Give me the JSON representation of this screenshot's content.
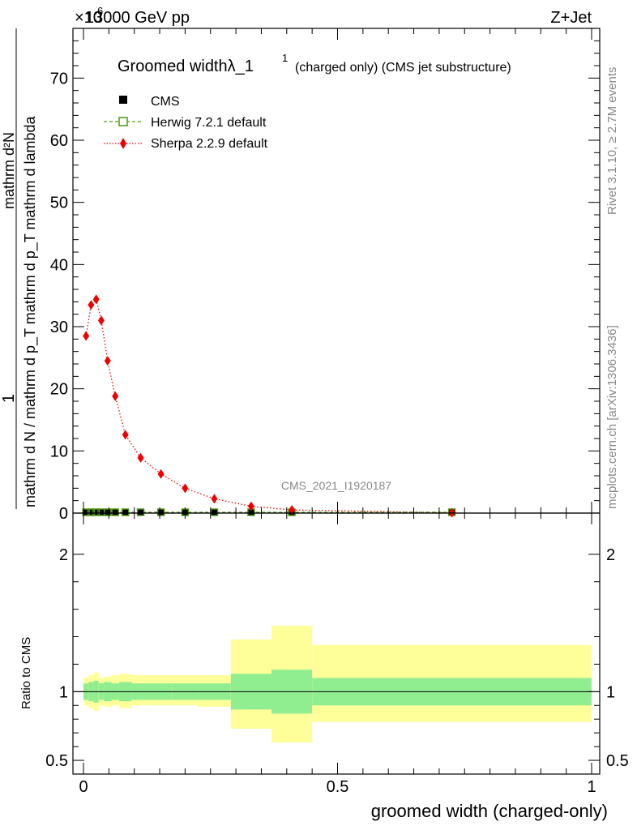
{
  "header": {
    "energy_label": "13000 GeV pp",
    "process_label": "Z+Jet",
    "exponent_label": "×10⁶",
    "exponent_label_cut": "6"
  },
  "side_labels": {
    "rivet": "Rivet 3.1.10, ≥ 2.7M events",
    "mcplots": "mcplots.cern.ch [arXiv:1306.3436]"
  },
  "watermark": "CMS_2021_I1920187",
  "chart_data": [
    {
      "type": "line",
      "title": "Groomed widthλ_1",
      "title_sup": "1",
      "subtitle": "(charged only) (CMS jet substructure)",
      "xlabel": "groomed width (charged-only)",
      "ylabel_numerator": "mathrm d²N",
      "ylabel_denominator": "mathrm d N / mathrm d p_T mathrm d p_T mathrm d lambda",
      "ylabel_one": "1",
      "ylabel_fraction_left": "1",
      "ylabel_fraction_denominator": "mathrm d N / mathrm d p",
      "ylabel_fraction_denominator_sub": "T",
      "ylabel_fraction_numerator": "mathrm d",
      "ylabel_fraction_numerator_sup": "2",
      "ylabel_fraction_numerator_tail": "N",
      "ylabel_fraction_denominator_tail": "mathrm d p",
      "ylabel_fraction_denominator_tail_sub": "T",
      "ylabel_fraction_denominator_end": "mathrm d lambda",
      "xlim": [
        0,
        1
      ],
      "ylim": [
        0,
        78
      ],
      "y_ticks": [
        0,
        10,
        20,
        30,
        40,
        50,
        60,
        70
      ],
      "x_ticks": [
        0,
        0.5,
        1
      ],
      "x_tick_labels": [
        "0",
        "0.5",
        "1"
      ],
      "legend_position": "top-left",
      "series": [
        {
          "name": "CMS",
          "style": "marker-square",
          "color": "#000000",
          "x": [
            0.005,
            0.015,
            0.025,
            0.035,
            0.0475,
            0.0625,
            0.0825,
            0.1125,
            0.1525,
            0.2,
            0.2575,
            0.33,
            0.41,
            0.725
          ],
          "y": [
            0,
            0,
            0,
            0,
            0,
            0,
            0,
            0,
            0,
            0,
            0,
            0,
            0,
            0
          ]
        },
        {
          "name": "Herwig 7.2.1 default",
          "style": "dashed-open-square",
          "color": "#4b9a10",
          "x": [
            0.005,
            0.015,
            0.025,
            0.035,
            0.0475,
            0.0625,
            0.0825,
            0.1125,
            0.1525,
            0.2,
            0.2575,
            0.33,
            0.41,
            0.725
          ],
          "y": [
            0,
            0,
            0,
            0,
            0,
            0,
            0,
            0,
            0,
            0,
            0,
            0,
            0,
            0
          ]
        },
        {
          "name": "Sherpa 2.2.9 default",
          "style": "dotted-diamond",
          "color": "#ee0000",
          "x": [
            0.005,
            0.015,
            0.025,
            0.035,
            0.0475,
            0.0625,
            0.0825,
            0.1125,
            0.1525,
            0.2,
            0.2575,
            0.33,
            0.41,
            0.725
          ],
          "y": [
            28.5,
            33.5,
            34.4,
            31.0,
            24.5,
            18.8,
            12.6,
            8.9,
            6.3,
            4.0,
            2.3,
            1.1,
            0.5,
            0.05
          ]
        }
      ]
    },
    {
      "type": "area",
      "ylabel": "Ratio to CMS",
      "xlim": [
        0,
        1
      ],
      "ylim": [
        0.4,
        2.3
      ],
      "y_ticks": [
        0.5,
        1,
        2
      ],
      "y_tick_labels": [
        "0.5",
        "1",
        "2"
      ],
      "reference": 1,
      "bins": [
        0,
        0.01,
        0.02,
        0.03,
        0.04,
        0.055,
        0.07,
        0.095,
        0.13,
        0.175,
        0.225,
        0.29,
        0.37,
        0.45,
        1.0
      ],
      "inner_band": {
        "color": "#90ee90",
        "lo": [
          0.94,
          0.93,
          0.92,
          0.94,
          0.93,
          0.94,
          0.93,
          0.94,
          0.94,
          0.94,
          0.94,
          0.87,
          0.84,
          0.9
        ],
        "hi": [
          1.06,
          1.07,
          1.08,
          1.06,
          1.07,
          1.06,
          1.07,
          1.06,
          1.06,
          1.06,
          1.06,
          1.13,
          1.16,
          1.1
        ]
      },
      "outer_band": {
        "color": "#ffff99",
        "lo": [
          0.9,
          0.88,
          0.86,
          0.9,
          0.89,
          0.9,
          0.88,
          0.9,
          0.9,
          0.9,
          0.89,
          0.73,
          0.63,
          0.78
        ],
        "hi": [
          1.1,
          1.12,
          1.14,
          1.1,
          1.11,
          1.12,
          1.13,
          1.12,
          1.12,
          1.12,
          1.12,
          1.38,
          1.48,
          1.34
        ]
      }
    }
  ]
}
